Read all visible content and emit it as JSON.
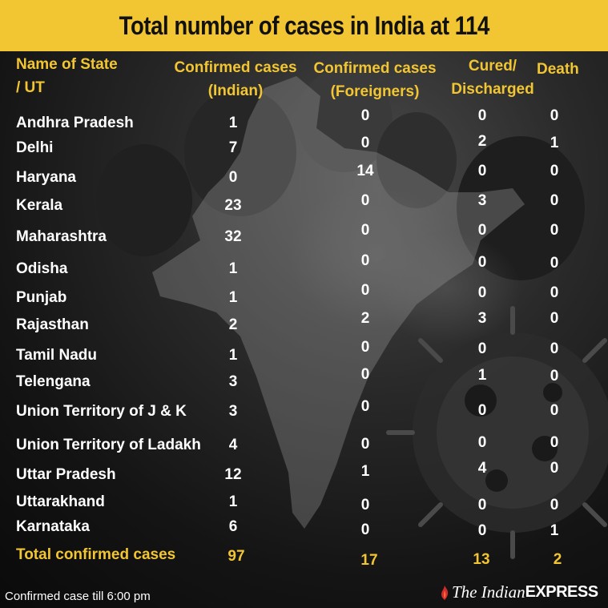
{
  "title": "Total number of cases in India at 114",
  "headers": {
    "state_line1": "Name of State",
    "state_line2": "/ UT",
    "indian_line1": "Confirmed cases",
    "indian_line2": "(Indian)",
    "foreign_line1": "Confirmed cases",
    "foreign_line2": "(Foreigners)",
    "cured_line1": "Cured/",
    "cured_line2": "Discharged",
    "death": "Death"
  },
  "rows": [
    {
      "state": "Andhra Pradesh",
      "indian": "1",
      "foreign": "0",
      "cured": "0",
      "death": "0"
    },
    {
      "state": "Delhi",
      "indian": "7",
      "foreign": "0",
      "cured": "2",
      "death": "1"
    },
    {
      "state": "Haryana",
      "indian": "0",
      "foreign": "14",
      "cured": "0",
      "death": "0"
    },
    {
      "state": "Kerala",
      "indian": "23",
      "foreign": "0",
      "cured": "3",
      "death": "0"
    },
    {
      "state": "Maharashtra",
      "indian": "32",
      "foreign": "0",
      "cured": "0",
      "death": "0"
    },
    {
      "state": "Odisha",
      "indian": "1",
      "foreign": "0",
      "cured": "0",
      "death": "0"
    },
    {
      "state": "Punjab",
      "indian": "1",
      "foreign": "0",
      "cured": "0",
      "death": "0"
    },
    {
      "state": "Rajasthan",
      "indian": "2",
      "foreign": "2",
      "cured": "3",
      "death": "0"
    },
    {
      "state": "Tamil Nadu",
      "indian": "1",
      "foreign": "0",
      "cured": "0",
      "death": "0"
    },
    {
      "state": "Telengana",
      "indian": "3",
      "foreign": "0",
      "cured": "1",
      "death": "0"
    },
    {
      "state": "Union Territory of J & K",
      "indian": "3",
      "foreign": "0",
      "cured": "0",
      "death": "0"
    },
    {
      "state": "Union Territory of Ladakh",
      "indian": "4",
      "foreign": "0",
      "cured": "0",
      "death": "0"
    },
    {
      "state": "Uttar Pradesh",
      "indian": "12",
      "foreign": "1",
      "cured": "4",
      "death": "0"
    },
    {
      "state": "Uttarakhand",
      "indian": "1",
      "foreign": "0",
      "cured": "0",
      "death": "0"
    },
    {
      "state": "Karnataka",
      "indian": "6",
      "foreign": "0",
      "cured": "0",
      "death": "1"
    }
  ],
  "total": {
    "label": "Total confirmed cases",
    "indian": "97",
    "foreign": "17",
    "cured": "13",
    "death": "2"
  },
  "footer": "Confirmed case till 6:00 pm",
  "brand": {
    "part1": "The Indian",
    "part2": "EXPRESS"
  },
  "colors": {
    "accent": "#f2c532",
    "text": "#ffffff",
    "background": "#141414"
  }
}
